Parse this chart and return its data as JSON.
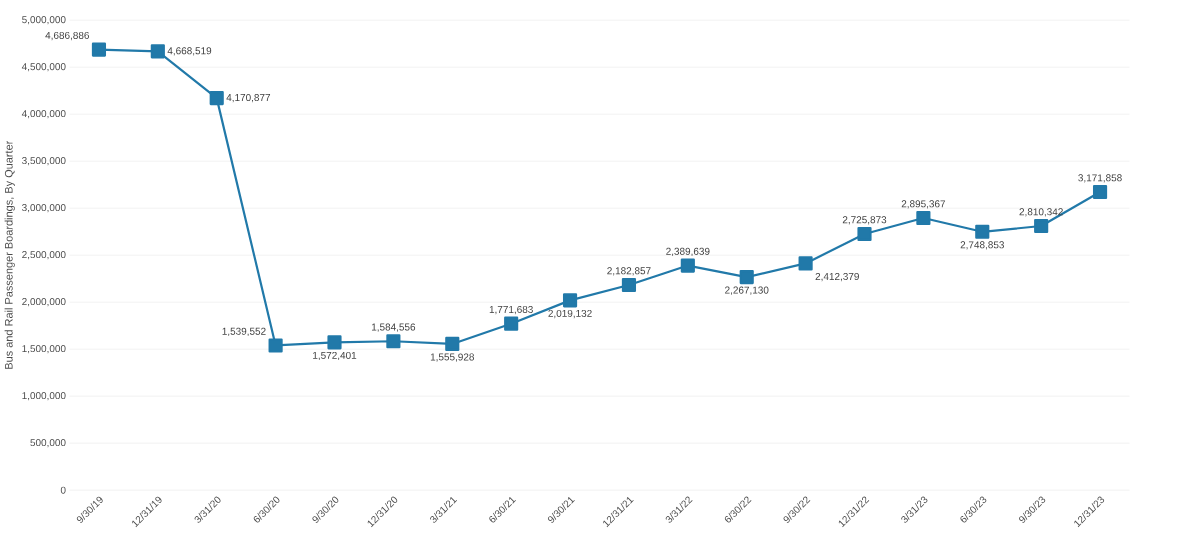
{
  "chart_data": {
    "type": "line",
    "ylabel": "Bus and Rail  Passenger Boardings, By Quarter",
    "categories": [
      "9/30/19",
      "12/31/19",
      "3/31/20",
      "6/30/20",
      "9/30/20",
      "12/31/20",
      "3/31/21",
      "6/30/21",
      "9/30/21",
      "12/31/21",
      "3/31/22",
      "6/30/22",
      "9/30/22",
      "12/31/22",
      "3/31/23",
      "6/30/23",
      "9/30/23",
      "12/31/23"
    ],
    "values": [
      4686886,
      4668519,
      4170877,
      1539552,
      1572401,
      1584556,
      1555928,
      1771683,
      2019132,
      2182857,
      2389639,
      2267130,
      2412379,
      2725873,
      2895367,
      2748853,
      2810342,
      3171858
    ],
    "value_labels": [
      "4,686,886",
      "4,668,519",
      "4,170,877",
      "1,539,552",
      "1,572,401",
      "1,584,556",
      "1,555,928",
      "1,771,683",
      "2,019,132",
      "2,182,857",
      "2,389,639",
      "2,267,130",
      "2,412,379",
      "2,725,873",
      "2,895,367",
      "2,748,853",
      "2,810,342",
      "3,171,858"
    ],
    "color": "#2179a9",
    "marker": "square",
    "line_style": "solid",
    "grid": "y",
    "ylim": [
      0,
      5000000
    ],
    "yticks": [
      {
        "value": 0,
        "label": "0"
      },
      {
        "value": 500000,
        "label": "500,000"
      },
      {
        "value": 1000000,
        "label": "1,000,000"
      },
      {
        "value": 1500000,
        "label": "1,500,000"
      },
      {
        "value": 2000000,
        "label": "2,000,000"
      },
      {
        "value": 2500000,
        "label": "2,500,000"
      },
      {
        "value": 3000000,
        "label": "3,000,000"
      },
      {
        "value": 3500000,
        "label": "3,500,000"
      },
      {
        "value": 4000000,
        "label": "4,000,000"
      },
      {
        "value": 4500000,
        "label": "4,500,000"
      },
      {
        "value": 5000000,
        "label": "5,000,000"
      }
    ]
  }
}
